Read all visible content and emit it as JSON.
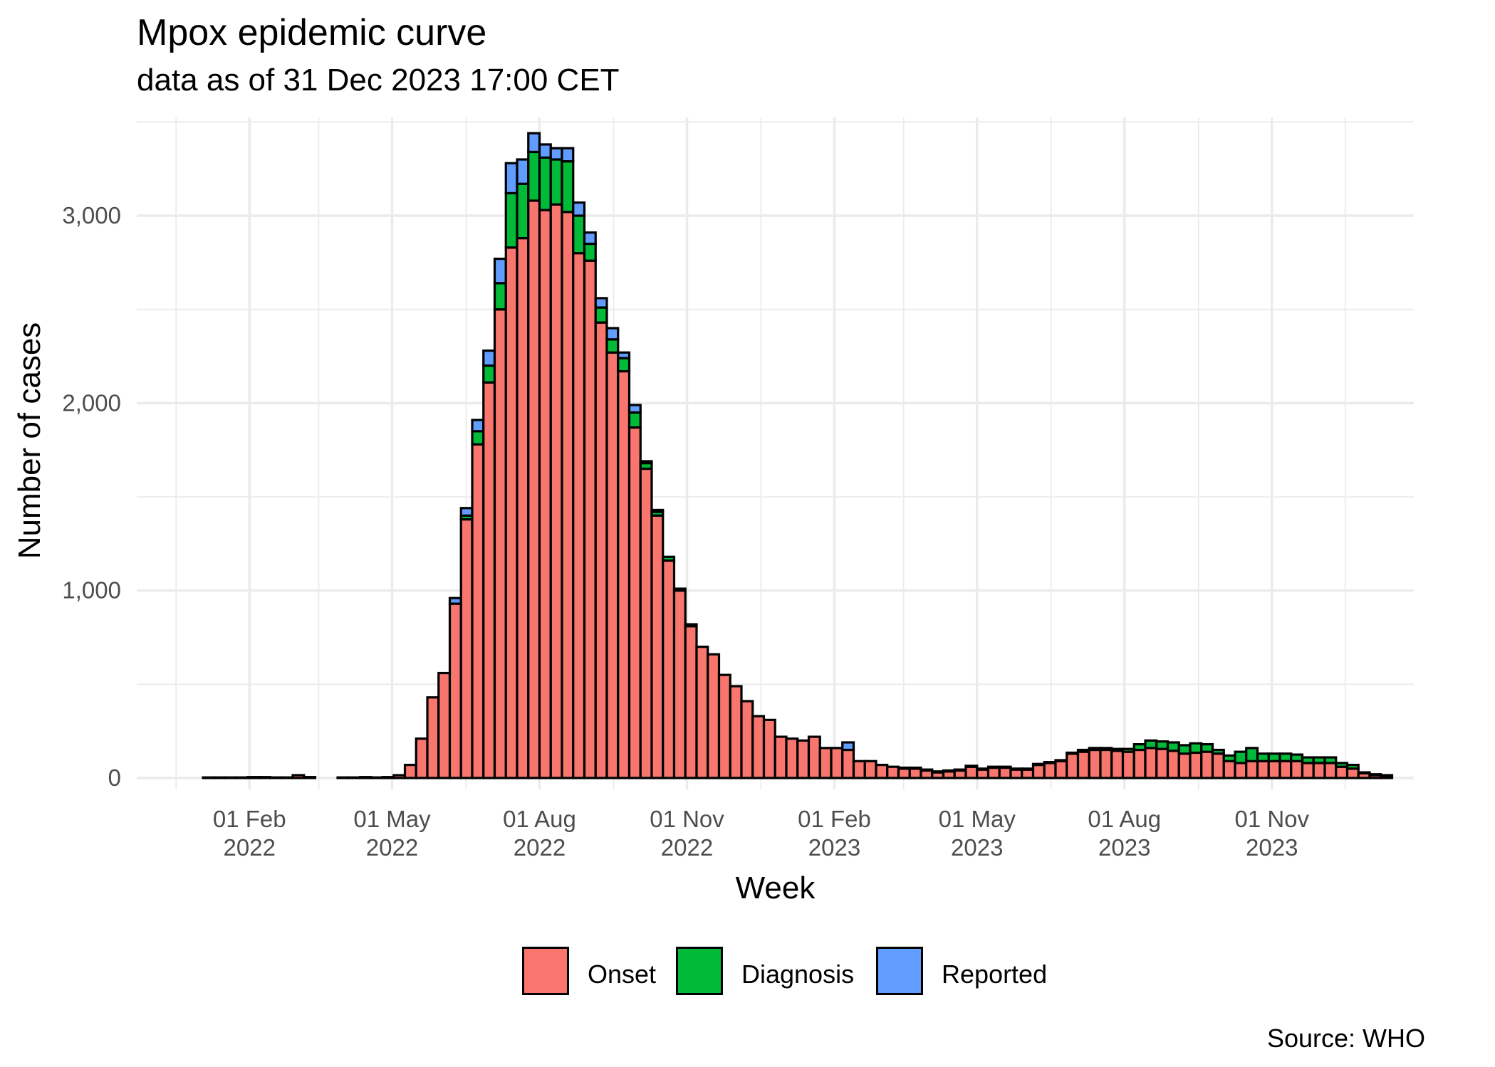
{
  "title": "Mpox epidemic curve",
  "subtitle": "data as of 31 Dec 2023 17:00 CET",
  "caption": "Source: WHO",
  "colors": {
    "Onset": "#F8766D",
    "Diagnosis": "#00BA38",
    "Reported": "#619CFF",
    "grid": "#ebebeb",
    "outline": "#000000"
  },
  "chart_data": {
    "type": "bar",
    "stacked": true,
    "xlabel": "Week",
    "ylabel": "Number of cases",
    "ylim": [
      0,
      3500
    ],
    "grid": true,
    "legend_position": "bottom",
    "y_ticks": [
      {
        "value": 0,
        "label": "0"
      },
      {
        "value": 1000,
        "label": "1,000"
      },
      {
        "value": 2000,
        "label": "2,000"
      },
      {
        "value": 3000,
        "label": "3,000"
      }
    ],
    "x_ticks": [
      {
        "date": "2022-02-01",
        "line1": "01 Feb",
        "line2": "2022"
      },
      {
        "date": "2022-05-01",
        "line1": "01 May",
        "line2": "2022"
      },
      {
        "date": "2022-08-01",
        "line1": "01 Aug",
        "line2": "2022"
      },
      {
        "date": "2022-11-01",
        "line1": "01 Nov",
        "line2": "2022"
      },
      {
        "date": "2023-02-01",
        "line1": "01 Feb",
        "line2": "2023"
      },
      {
        "date": "2023-05-01",
        "line1": "01 May",
        "line2": "2023"
      },
      {
        "date": "2023-08-01",
        "line1": "01 Aug",
        "line2": "2023"
      },
      {
        "date": "2023-11-01",
        "line1": "01 Nov",
        "line2": "2023"
      }
    ],
    "x_start": "2022-01-03",
    "week_days": 7,
    "series": [
      {
        "name": "Onset",
        "values": [
          3,
          3,
          3,
          3,
          5,
          5,
          3,
          3,
          15,
          5,
          0,
          0,
          3,
          3,
          5,
          3,
          5,
          15,
          70,
          210,
          430,
          560,
          930,
          1380,
          1780,
          2110,
          2500,
          2830,
          2880,
          3080,
          3030,
          3060,
          3020,
          2800,
          2760,
          2430,
          2270,
          2170,
          1870,
          1650,
          1400,
          1160,
          1000,
          810,
          700,
          660,
          550,
          490,
          410,
          330,
          310,
          220,
          210,
          200,
          220,
          160,
          160,
          150,
          90,
          90,
          70,
          60,
          50,
          50,
          40,
          30,
          35,
          40,
          60,
          45,
          55,
          55,
          45,
          45,
          70,
          80,
          90,
          130,
          140,
          150,
          150,
          145,
          140,
          150,
          160,
          155,
          145,
          130,
          135,
          140,
          130,
          90,
          80,
          90,
          90,
          90,
          90,
          90,
          80,
          80,
          80,
          60,
          50,
          25,
          15,
          10
        ]
      },
      {
        "name": "Diagnosis",
        "values": [
          0,
          0,
          0,
          0,
          0,
          0,
          0,
          0,
          0,
          0,
          0,
          0,
          0,
          0,
          0,
          0,
          0,
          0,
          0,
          0,
          0,
          0,
          0,
          20,
          70,
          90,
          140,
          290,
          290,
          260,
          280,
          240,
          270,
          200,
          90,
          80,
          70,
          70,
          80,
          30,
          20,
          20,
          10,
          10,
          0,
          0,
          0,
          0,
          0,
          0,
          0,
          0,
          0,
          0,
          0,
          0,
          0,
          0,
          0,
          0,
          0,
          0,
          5,
          5,
          5,
          5,
          5,
          5,
          5,
          5,
          5,
          5,
          5,
          5,
          5,
          5,
          5,
          5,
          10,
          10,
          10,
          10,
          15,
          30,
          40,
          40,
          45,
          45,
          50,
          40,
          20,
          30,
          60,
          70,
          40,
          40,
          40,
          35,
          30,
          30,
          30,
          20,
          20,
          5,
          5,
          5
        ]
      },
      {
        "name": "Reported",
        "values": [
          0,
          0,
          0,
          0,
          0,
          0,
          0,
          0,
          0,
          0,
          0,
          0,
          0,
          0,
          0,
          0,
          0,
          0,
          0,
          0,
          0,
          0,
          30,
          40,
          60,
          80,
          130,
          160,
          130,
          100,
          70,
          60,
          70,
          70,
          60,
          50,
          60,
          30,
          40,
          10,
          10,
          0,
          0,
          0,
          0,
          0,
          0,
          0,
          0,
          0,
          0,
          0,
          0,
          0,
          0,
          0,
          0,
          40,
          0,
          0,
          0,
          0,
          0,
          0,
          0,
          0,
          0,
          0,
          0,
          0,
          0,
          0,
          0,
          0,
          0,
          0,
          0,
          0,
          0,
          0,
          0,
          0,
          0,
          0,
          0,
          0,
          0,
          0,
          0,
          0,
          0,
          0,
          0,
          0,
          0,
          0,
          0,
          0,
          0,
          0,
          0,
          0,
          0,
          0,
          0,
          0
        ]
      }
    ]
  }
}
